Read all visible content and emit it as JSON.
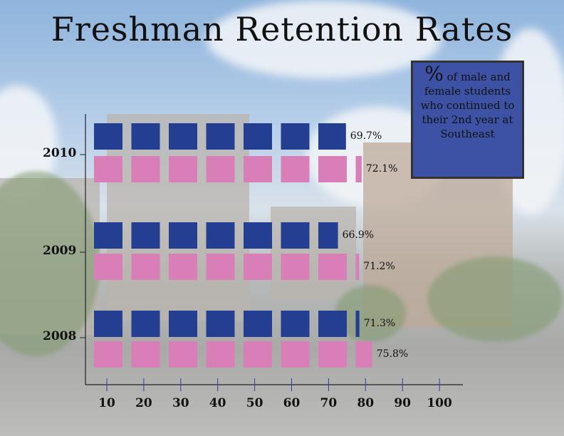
{
  "title": "Freshman Retention Rates",
  "legend": {
    "symbol": "%",
    "text": "of male and female students who continued to their 2nd year at Southeast"
  },
  "colors": {
    "male": "#243f92",
    "female": "#d77fb6"
  },
  "chart_data": {
    "type": "bar",
    "orientation": "horizontal pictogram",
    "title": "Freshman Retention Rates",
    "categories": [
      "2010",
      "2009",
      "2008"
    ],
    "series": [
      {
        "values": [
          69.7,
          66.9,
          71.3
        ],
        "labels": [
          "69.7%",
          "66.9%",
          "71.3%"
        ],
        "color": "#243f92"
      },
      {
        "values": [
          72.1,
          71.2,
          75.8
        ],
        "labels": [
          "72.1%",
          "71.2%",
          "75.8%"
        ],
        "color": "#d77fb6"
      }
    ],
    "xticks": [
      "10",
      "20",
      "30",
      "40",
      "50",
      "60",
      "70",
      "80",
      "90",
      "100"
    ],
    "xlim": [
      0,
      100
    ],
    "grid": false
  }
}
